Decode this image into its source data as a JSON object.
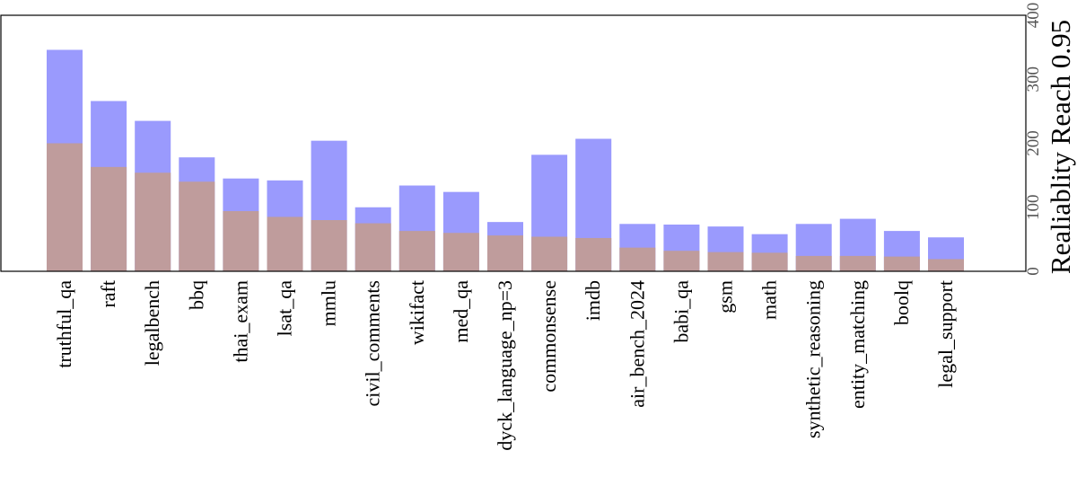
{
  "chart_data": {
    "type": "bar",
    "title": "",
    "xlabel": "",
    "ylabel": "Realiablity Reach 0.95",
    "ylim": [
      0,
      400
    ],
    "yticks": [
      0,
      100,
      200,
      300,
      400
    ],
    "yaxis_position": "right",
    "grid": false,
    "overlap": true,
    "categories": [
      "truthful_qa",
      "raft",
      "legalbench",
      "bbq",
      "thai_exam",
      "lsat_qa",
      "mmlu",
      "civil_comments",
      "wikifact",
      "med_qa",
      "dyck_language_np=3",
      "commonsense",
      "imdb",
      "air_bench_2024",
      "babi_qa",
      "gsm",
      "math",
      "synthetic_reasoning",
      "entity_matching",
      "boolq",
      "legal_support"
    ],
    "series": [
      {
        "color": "#9a9afd",
        "values": [
          346,
          266,
          235,
          178,
          145,
          142,
          204,
          100,
          134,
          124,
          77,
          182,
          207,
          74,
          73,
          70,
          58,
          74,
          82,
          63,
          53
        ]
      },
      {
        "color": "#bf9c9c",
        "values": [
          200,
          163,
          154,
          140,
          94,
          85,
          80,
          75,
          63,
          60,
          56,
          54,
          52,
          37,
          32,
          30,
          29,
          24,
          24,
          23,
          19
        ]
      }
    ]
  }
}
